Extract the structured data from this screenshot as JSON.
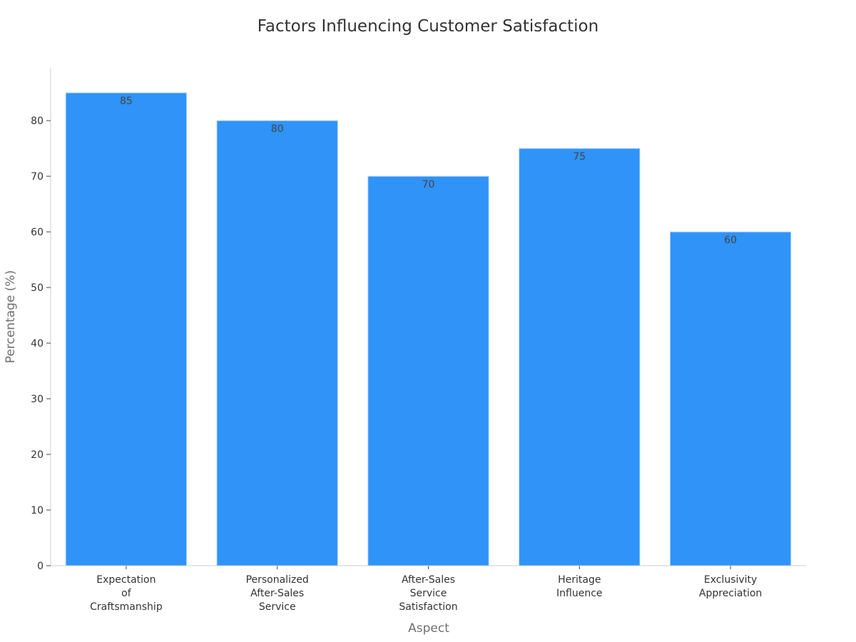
{
  "chart_data": {
    "type": "bar",
    "title": "Factors Influencing Customer Satisfaction",
    "xlabel": "Aspect",
    "ylabel": "Percentage (%)",
    "categories": [
      [
        "Expectation",
        "of",
        "Craftsmanship"
      ],
      [
        "Personalized",
        "After-Sales",
        "Service"
      ],
      [
        "After-Sales",
        "Service",
        "Satisfaction"
      ],
      [
        "Heritage",
        "Influence"
      ],
      [
        "Exclusivity",
        "Appreciation"
      ]
    ],
    "values": [
      85,
      80,
      70,
      75,
      60
    ],
    "ylim": [
      0,
      89.5
    ],
    "yticks": [
      0,
      10,
      20,
      30,
      40,
      50,
      60,
      70,
      80
    ],
    "grid": false,
    "bar_color": "#2f93f8",
    "bar_edge_color": "#bcdcfb"
  }
}
